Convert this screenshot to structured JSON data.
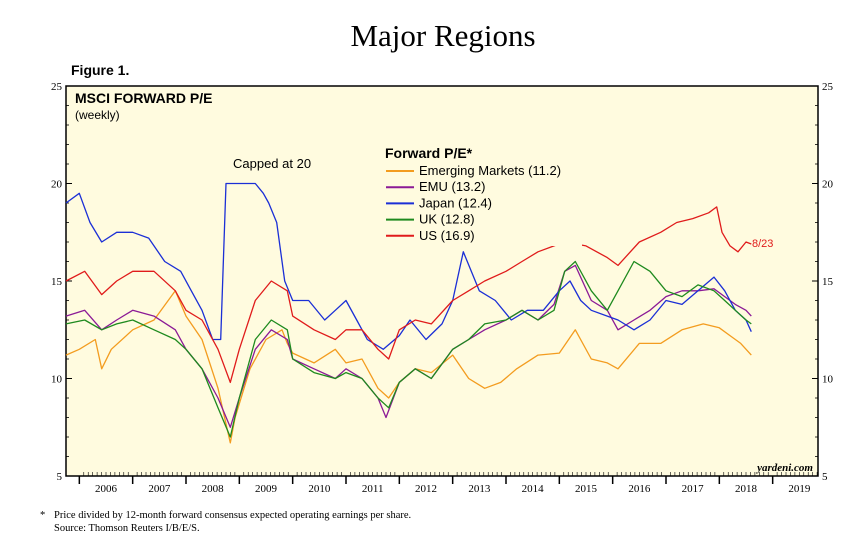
{
  "header": {
    "title": "Major Regions",
    "figure_label": "Figure 1."
  },
  "chart_header": {
    "title": "MSCI FORWARD P/E",
    "subtitle": "(weekly)"
  },
  "annotations": {
    "capped": "Capped at 20",
    "last_date": "8/23",
    "watermark": "yardeni.com"
  },
  "footnote": {
    "mark": "*",
    "line1": "Price divided by 12-month forward consensus expected operating earnings per share.",
    "line2": "Source: Thomson Reuters I/B/E/S."
  },
  "chart_data": {
    "type": "line",
    "title": "MSCI FORWARD P/E",
    "subtitle": "(weekly)",
    "legend_title": "Forward P/E*",
    "legend_position": "top-center",
    "ylim": [
      5,
      25
    ],
    "yticks": [
      5,
      10,
      15,
      20,
      25
    ],
    "xlim": [
      2005.75,
      2019.85
    ],
    "xtick_labels": [
      "2006",
      "2007",
      "2008",
      "2009",
      "2010",
      "2011",
      "2012",
      "2013",
      "2014",
      "2015",
      "2016",
      "2017",
      "2018",
      "2019"
    ],
    "series": [
      {
        "name": "Emerging Markets (11.2)",
        "color": "#f39c1f",
        "x": [
          2005.75,
          2006.0,
          2006.3,
          2006.42,
          2006.6,
          2007.0,
          2007.4,
          2007.8,
          2008.0,
          2008.3,
          2008.6,
          2008.83,
          2008.92,
          2009.2,
          2009.5,
          2009.8,
          2009.9,
          2010.0,
          2010.4,
          2010.8,
          2011.0,
          2011.3,
          2011.6,
          2011.8,
          2012.0,
          2012.3,
          2012.6,
          2013.0,
          2013.3,
          2013.6,
          2013.9,
          2014.2,
          2014.6,
          2015.0,
          2015.3,
          2015.6,
          2015.9,
          2016.1,
          2016.5,
          2016.9,
          2017.3,
          2017.7,
          2018.0,
          2018.2,
          2018.4,
          2018.6
        ],
        "y": [
          11.2,
          11.5,
          12.0,
          10.5,
          11.5,
          12.5,
          13.0,
          14.5,
          13.2,
          12.0,
          9.5,
          6.7,
          8.0,
          10.5,
          12.0,
          12.5,
          11.8,
          11.3,
          10.8,
          11.5,
          10.8,
          11.0,
          9.5,
          9.0,
          9.8,
          10.5,
          10.3,
          11.2,
          10.0,
          9.5,
          9.8,
          10.5,
          11.2,
          11.3,
          12.5,
          11.0,
          10.8,
          10.5,
          11.8,
          11.8,
          12.5,
          12.8,
          12.6,
          12.2,
          11.8,
          11.2
        ]
      },
      {
        "name": "EMU (13.2)",
        "color": "#8b1a96",
        "x": [
          2005.75,
          2006.1,
          2006.42,
          2006.7,
          2007.0,
          2007.4,
          2007.8,
          2008.0,
          2008.3,
          2008.6,
          2008.83,
          2009.0,
          2009.3,
          2009.6,
          2009.9,
          2010.0,
          2010.4,
          2010.8,
          2011.0,
          2011.3,
          2011.6,
          2011.75,
          2012.0,
          2012.3,
          2012.6,
          2013.0,
          2013.3,
          2013.6,
          2014.0,
          2014.3,
          2014.6,
          2014.9,
          2015.1,
          2015.3,
          2015.6,
          2015.9,
          2016.1,
          2016.4,
          2016.7,
          2017.0,
          2017.3,
          2017.6,
          2017.9,
          2018.1,
          2018.3,
          2018.5,
          2018.6
        ],
        "y": [
          13.2,
          13.5,
          12.5,
          13.0,
          13.5,
          13.2,
          12.5,
          11.5,
          10.5,
          9.0,
          7.5,
          9.0,
          11.5,
          12.5,
          12.0,
          11.0,
          10.5,
          10.0,
          10.5,
          10.0,
          9.0,
          8.0,
          9.8,
          10.5,
          10.0,
          11.5,
          12.0,
          12.5,
          13.0,
          13.5,
          13.0,
          13.8,
          15.5,
          15.8,
          14.0,
          13.5,
          12.5,
          13.0,
          13.5,
          14.2,
          14.5,
          14.5,
          14.6,
          14.2,
          13.8,
          13.5,
          13.2
        ]
      },
      {
        "name": "Japan (12.4)",
        "color": "#1b2fd6",
        "x": [
          2005.75,
          2006.0,
          2006.2,
          2006.42,
          2006.7,
          2007.0,
          2007.3,
          2007.6,
          2007.9,
          2008.1,
          2008.3,
          2008.5,
          2008.65,
          2008.75,
          2009.3,
          2009.45,
          2009.55,
          2009.7,
          2009.85,
          2010.0,
          2010.3,
          2010.6,
          2010.8,
          2011.0,
          2011.2,
          2011.4,
          2011.7,
          2012.0,
          2012.2,
          2012.5,
          2012.8,
          2013.0,
          2013.2,
          2013.5,
          2013.8,
          2014.1,
          2014.4,
          2014.7,
          2015.0,
          2015.2,
          2015.4,
          2015.6,
          2015.9,
          2016.1,
          2016.4,
          2016.7,
          2017.0,
          2017.3,
          2017.6,
          2017.9,
          2018.1,
          2018.3,
          2018.5,
          2018.6
        ],
        "y": [
          19.0,
          19.5,
          18.0,
          17.0,
          17.5,
          17.5,
          17.2,
          16.0,
          15.5,
          14.5,
          13.5,
          12.0,
          12.0,
          20.0,
          20.0,
          19.5,
          19.0,
          18.0,
          15.0,
          14.0,
          14.0,
          13.0,
          13.5,
          14.0,
          13.0,
          12.0,
          11.5,
          12.2,
          13.0,
          12.0,
          12.8,
          14.0,
          16.5,
          14.5,
          14.0,
          13.0,
          13.5,
          13.5,
          14.5,
          15.0,
          14.0,
          13.5,
          13.2,
          13.0,
          12.5,
          13.0,
          14.0,
          13.8,
          14.5,
          15.2,
          14.5,
          13.5,
          13.0,
          12.4
        ]
      },
      {
        "name": "UK (12.8)",
        "color": "#1e8a1e",
        "x": [
          2005.75,
          2006.1,
          2006.42,
          2006.7,
          2007.0,
          2007.4,
          2007.8,
          2008.0,
          2008.3,
          2008.6,
          2008.83,
          2009.0,
          2009.3,
          2009.6,
          2009.9,
          2010.0,
          2010.4,
          2010.8,
          2011.0,
          2011.3,
          2011.6,
          2011.8,
          2012.0,
          2012.3,
          2012.6,
          2013.0,
          2013.3,
          2013.6,
          2014.0,
          2014.3,
          2014.6,
          2014.9,
          2015.1,
          2015.3,
          2015.6,
          2015.9,
          2016.1,
          2016.4,
          2016.7,
          2017.0,
          2017.3,
          2017.6,
          2017.9,
          2018.1,
          2018.3,
          2018.5,
          2018.6
        ],
        "y": [
          12.8,
          13.0,
          12.5,
          12.8,
          13.0,
          12.5,
          12.0,
          11.5,
          10.5,
          8.5,
          7.0,
          9.0,
          12.0,
          13.0,
          12.5,
          11.0,
          10.3,
          10.0,
          10.3,
          10.0,
          9.0,
          8.5,
          9.8,
          10.5,
          10.0,
          11.5,
          12.0,
          12.8,
          13.0,
          13.5,
          13.0,
          13.5,
          15.5,
          16.0,
          14.5,
          13.5,
          14.5,
          16.0,
          15.5,
          14.5,
          14.2,
          14.8,
          14.5,
          14.0,
          13.5,
          13.0,
          12.8
        ]
      },
      {
        "name": "US (16.9)",
        "color": "#e01b1b",
        "x": [
          2005.75,
          2006.1,
          2006.42,
          2006.7,
          2007.0,
          2007.4,
          2007.8,
          2008.0,
          2008.3,
          2008.6,
          2008.83,
          2009.0,
          2009.3,
          2009.6,
          2009.9,
          2010.0,
          2010.4,
          2010.8,
          2011.0,
          2011.3,
          2011.6,
          2011.8,
          2012.0,
          2012.3,
          2012.6,
          2013.0,
          2013.3,
          2013.6,
          2014.0,
          2014.3,
          2014.6,
          2014.9,
          2015.1,
          2015.5,
          2015.9,
          2016.1,
          2016.5,
          2016.9,
          2017.2,
          2017.5,
          2017.8,
          2017.95,
          2018.05,
          2018.2,
          2018.35,
          2018.5,
          2018.6
        ],
        "y": [
          15.0,
          15.5,
          14.3,
          15.0,
          15.5,
          15.5,
          14.5,
          13.5,
          13.0,
          11.5,
          9.8,
          11.5,
          14.0,
          15.0,
          14.5,
          13.2,
          12.5,
          12.0,
          12.5,
          12.5,
          11.5,
          11.0,
          12.5,
          13.0,
          12.8,
          14.0,
          14.5,
          15.0,
          15.5,
          16.0,
          16.5,
          16.8,
          17.0,
          16.8,
          16.2,
          15.8,
          17.0,
          17.5,
          18.0,
          18.2,
          18.5,
          18.8,
          17.5,
          16.8,
          16.5,
          17.0,
          16.9
        ]
      }
    ]
  }
}
